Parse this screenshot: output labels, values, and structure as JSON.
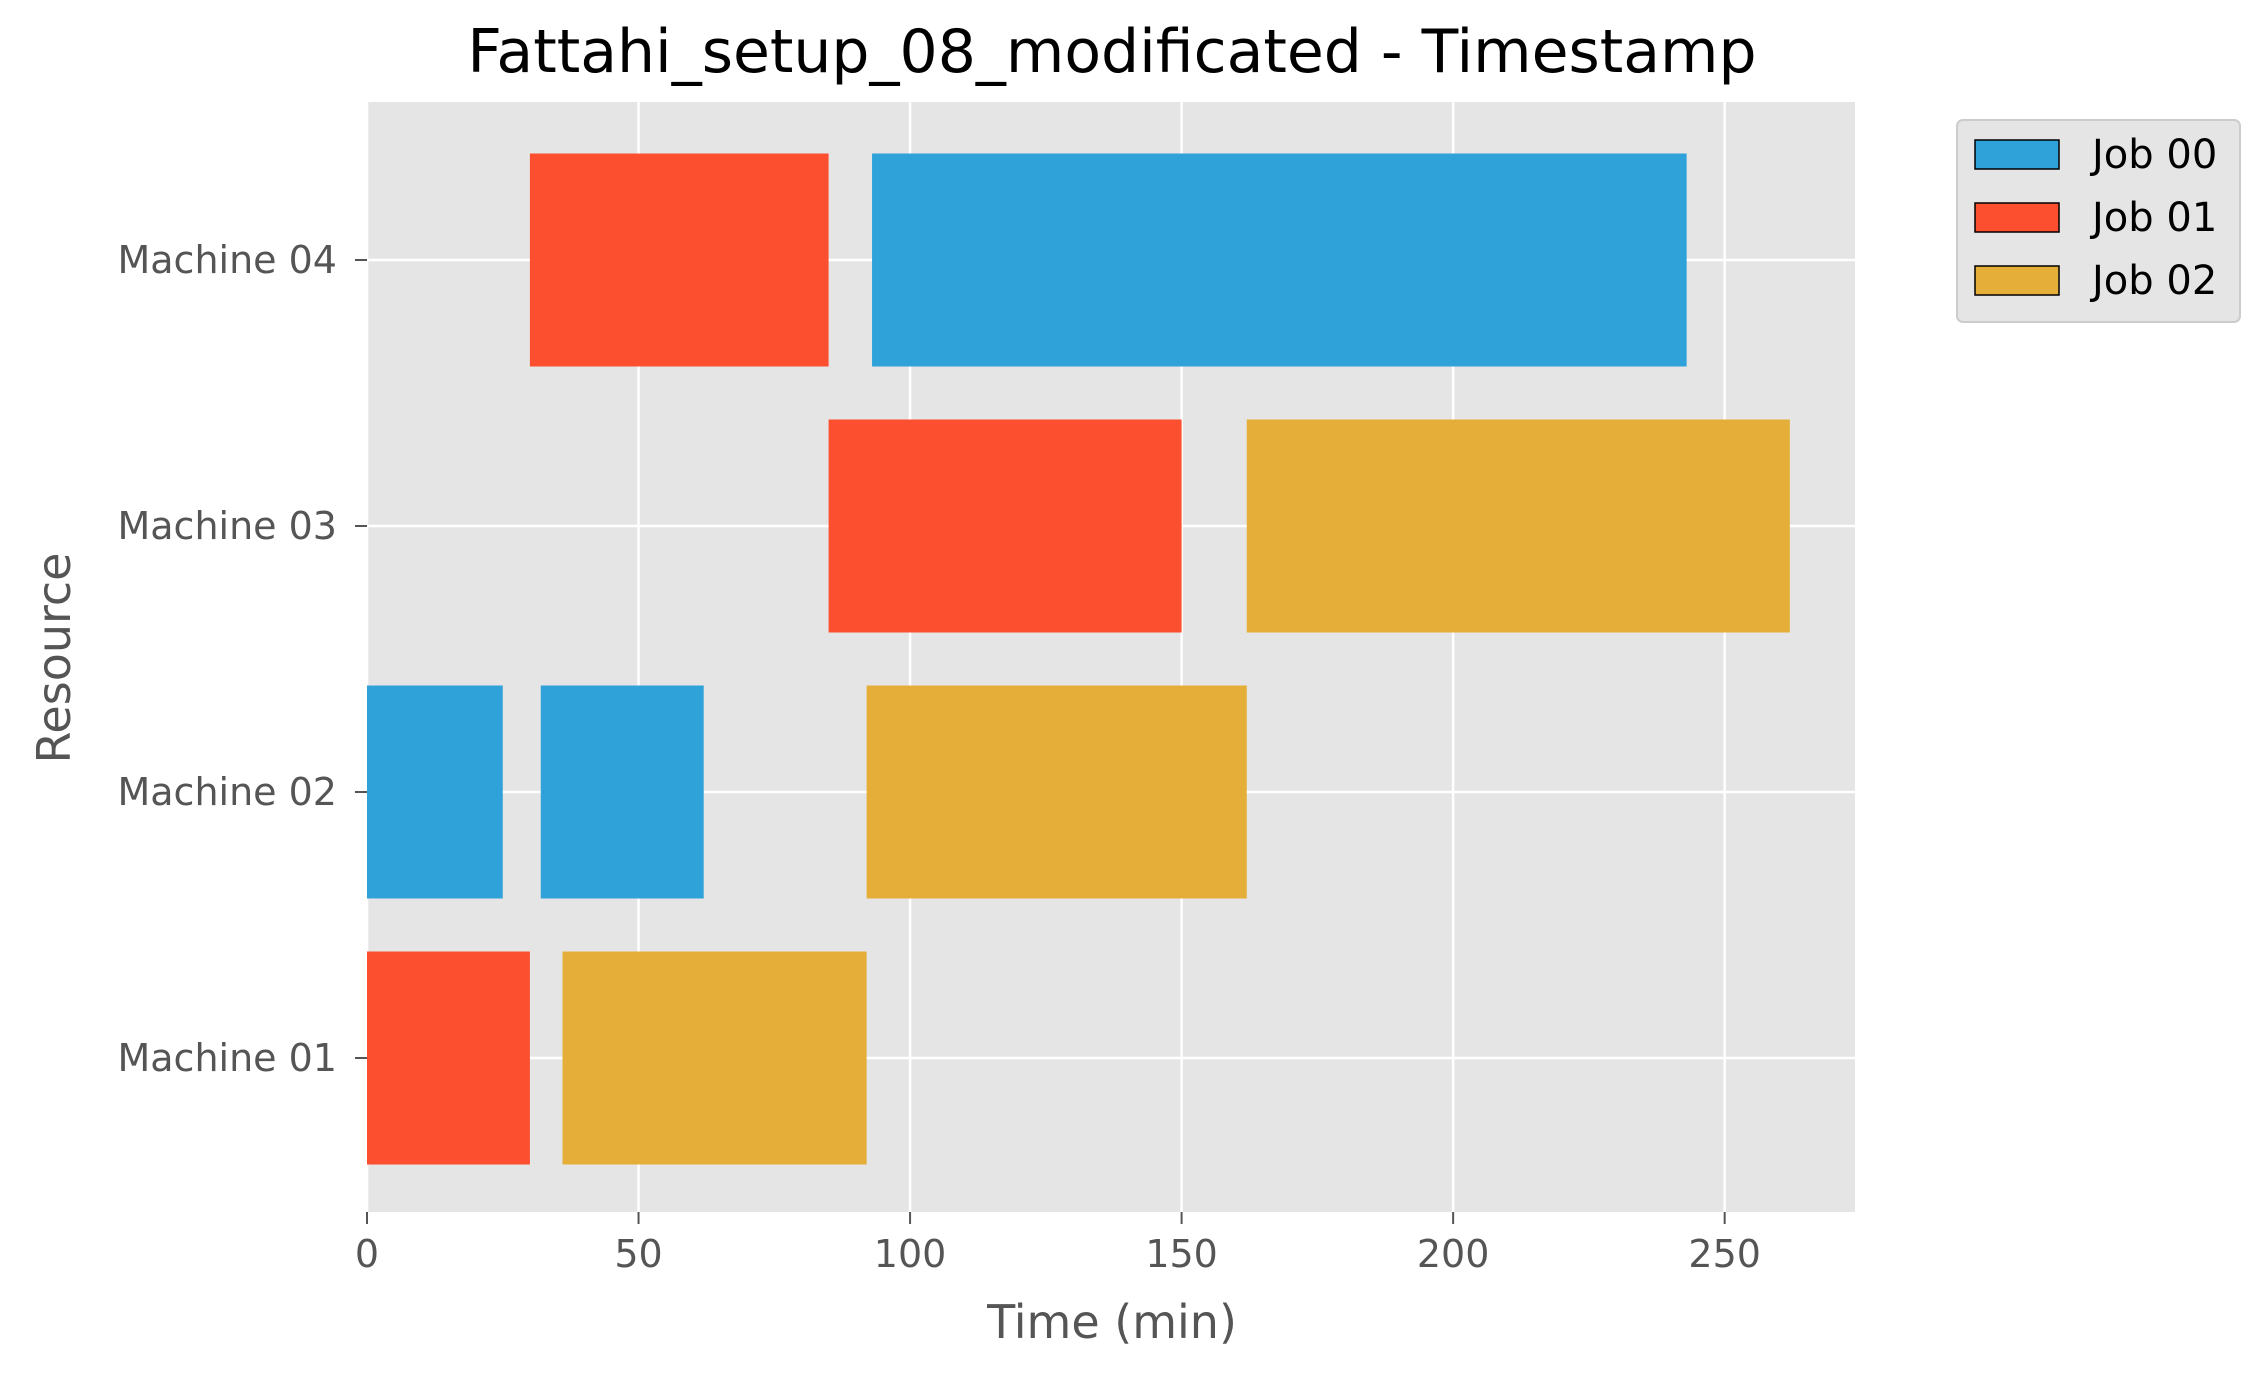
{
  "chart_data": {
    "type": "gantt",
    "title": "Fattahi_setup_08_modificated - Timestamp",
    "xlabel": "Time (min)",
    "ylabel": "Resource",
    "xlim": [
      0,
      274
    ],
    "x_ticks": [
      0,
      50,
      100,
      150,
      200,
      250
    ],
    "categories": [
      "Machine 01",
      "Machine 02",
      "Machine 03",
      "Machine 04"
    ],
    "grid": true,
    "legend_position": "outside-top-right",
    "series": [
      {
        "name": "Job 00",
        "color": "#30A2DA",
        "tasks": [
          {
            "resource": "Machine 02",
            "start": 0,
            "end": 25
          },
          {
            "resource": "Machine 02",
            "start": 32,
            "end": 62
          },
          {
            "resource": "Machine 04",
            "start": 93,
            "end": 243
          }
        ]
      },
      {
        "name": "Job 01",
        "color": "#FC4F30",
        "tasks": [
          {
            "resource": "Machine 01",
            "start": 0,
            "end": 30
          },
          {
            "resource": "Machine 04",
            "start": 30,
            "end": 85
          },
          {
            "resource": "Machine 03",
            "start": 85,
            "end": 150
          }
        ]
      },
      {
        "name": "Job 02",
        "color": "#E5AE38",
        "tasks": [
          {
            "resource": "Machine 01",
            "start": 36,
            "end": 92
          },
          {
            "resource": "Machine 02",
            "start": 92,
            "end": 162
          },
          {
            "resource": "Machine 03",
            "start": 162,
            "end": 262
          }
        ]
      }
    ]
  }
}
